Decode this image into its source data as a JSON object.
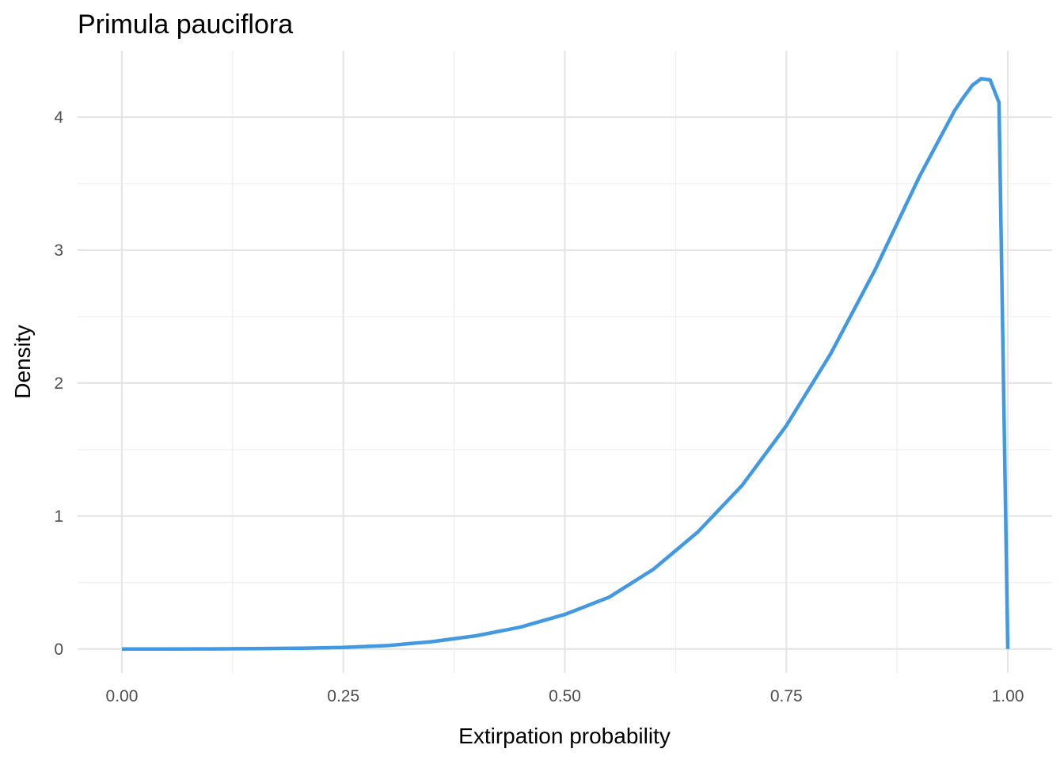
{
  "chart_data": {
    "type": "line",
    "title": "Primula pauciflora",
    "xlabel": "Extirpation probability",
    "ylabel": "Density",
    "xlim": [
      -0.05,
      1.05
    ],
    "ylim": [
      -0.18,
      4.5
    ],
    "x_ticks": [
      0,
      0.25,
      0.5,
      0.75,
      1
    ],
    "x_tick_labels": [
      "0.00",
      "0.25",
      "0.50",
      "0.75",
      "1.00"
    ],
    "y_ticks": [
      0,
      1,
      2,
      3,
      4
    ],
    "y_tick_labels": [
      "0",
      "1",
      "2",
      "3",
      "4"
    ],
    "grid": true,
    "legend": "none",
    "line_color": "#4299e1",
    "series": [
      {
        "x": [
          0,
          0.05,
          0.1,
          0.15,
          0.2,
          0.25,
          0.3,
          0.35,
          0.4,
          0.45,
          0.5,
          0.55,
          0.6,
          0.65,
          0.7,
          0.75,
          0.8,
          0.85,
          0.9,
          0.92,
          0.94,
          0.95,
          0.96,
          0.97,
          0.98,
          0.99,
          1
        ],
        "values": [
          0,
          0,
          0.001,
          0.003,
          0.006,
          0.012,
          0.026,
          0.055,
          0.1,
          0.165,
          0.26,
          0.39,
          0.6,
          0.88,
          1.23,
          1.68,
          2.22,
          2.85,
          3.55,
          3.8,
          4.05,
          4.15,
          4.24,
          4.29,
          4.28,
          4.11,
          0
        ]
      }
    ]
  }
}
